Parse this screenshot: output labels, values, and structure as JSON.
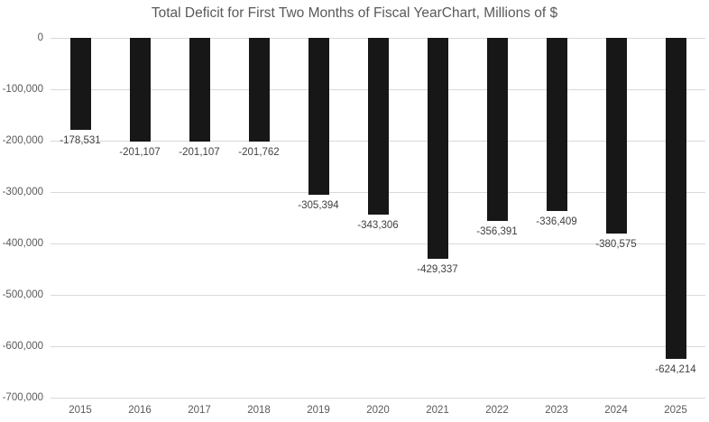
{
  "title": "Total Deficit for First Two Months of Fiscal YearChart, Millions of $",
  "colors": {
    "bar": "#171717",
    "gridline": "#d9d9d9",
    "axis_text": "#595959",
    "data_label_text": "#404040",
    "title_text": "#595959",
    "background": "#ffffff"
  },
  "chart_data": {
    "type": "bar",
    "title": "Total Deficit for First Two Months of Fiscal YearChart, Millions of $",
    "categories": [
      "2015",
      "2016",
      "2017",
      "2018",
      "2019",
      "2020",
      "2021",
      "2022",
      "2023",
      "2024",
      "2025"
    ],
    "values": [
      -178531,
      -201107,
      -201107,
      -201762,
      -305394,
      -343306,
      -429337,
      -356391,
      -336409,
      -380575,
      -624214
    ],
    "data_labels": [
      "-178,531",
      "-201,107",
      "-201,107",
      "-201,762",
      "-305,394",
      "-343,306",
      "-429,337",
      "-356,391",
      "-336,409",
      "-380,575",
      "-624,214"
    ],
    "xlabel": "",
    "ylabel": "",
    "ylim": [
      -700000,
      0
    ],
    "yticks": [
      {
        "value": 0,
        "label": "0"
      },
      {
        "value": -100000,
        "label": "-100,000"
      },
      {
        "value": -200000,
        "label": "-200,000"
      },
      {
        "value": -300000,
        "label": "-300,000"
      },
      {
        "value": -400000,
        "label": "-400,000"
      },
      {
        "value": -500000,
        "label": "-500,000"
      },
      {
        "value": -600000,
        "label": "-600,000"
      },
      {
        "value": -700000,
        "label": "-700,000"
      }
    ],
    "grid": true,
    "legend": false,
    "data_label_position": "outside-end"
  }
}
